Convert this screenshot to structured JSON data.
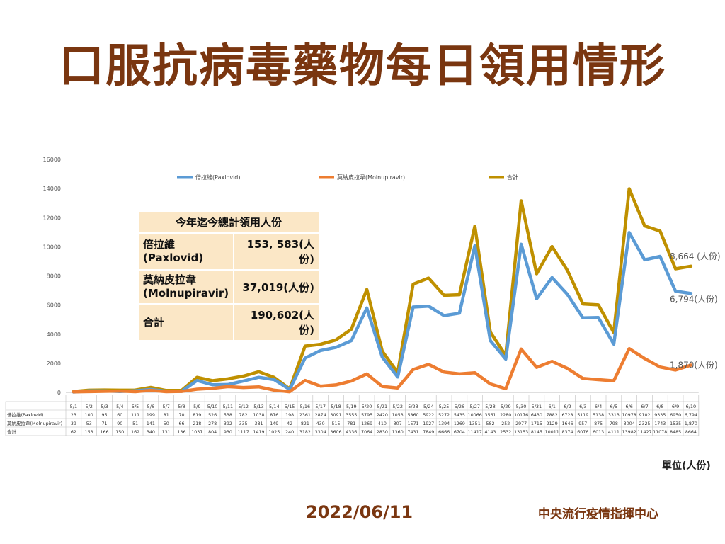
{
  "title": "口服抗病毒藥物每日領用情形",
  "summary": {
    "header": "今年迄今總計領用人份",
    "rows": [
      {
        "label": "倍拉維\n(Paxlovid)",
        "value": "153, 583(人份)"
      },
      {
        "label": "莫納皮拉韋\n(Molnupiravir)",
        "value": "37,019(人份)"
      },
      {
        "label": "合計",
        "value": "190,602(人份)"
      }
    ]
  },
  "unit_label": "單位(人份)",
  "date": "2022/06/11",
  "org": "中央流行疫情指揮中心",
  "chart_data": {
    "type": "line",
    "categories": [
      "5/1",
      "5/2",
      "5/3",
      "5/4",
      "5/5",
      "5/6",
      "5/7",
      "5/8",
      "5/9",
      "5/10",
      "5/11",
      "5/12",
      "5/13",
      "5/14",
      "5/15",
      "5/16",
      "5/17",
      "5/18",
      "5/19",
      "5/20",
      "5/21",
      "5/22",
      "5/23",
      "5/24",
      "5/25",
      "5/26",
      "5/27",
      "5/28",
      "5/29",
      "5/30",
      "5/31",
      "6/1",
      "6/2",
      "6/3",
      "6/4",
      "6/5",
      "6/6",
      "6/7",
      "6/8",
      "6/9",
      "6/10"
    ],
    "ylim": [
      0,
      16000
    ],
    "yticks": [
      0,
      2000,
      4000,
      6000,
      8000,
      10000,
      12000,
      14000,
      16000
    ],
    "legend_position": "top",
    "grid": false,
    "series": [
      {
        "name": "倍拉維(Paxlovid)",
        "table_label": "倍拉維(Paxlovid)",
        "color": "#5b9bd5",
        "values": [
          23,
          100,
          95,
          60,
          111,
          199,
          81,
          70,
          819,
          526,
          538,
          782,
          1038,
          876,
          198,
          2361,
          2874,
          3091,
          3555,
          5795,
          2420,
          1053,
          5860,
          5922,
          5272,
          5435,
          10066,
          3561,
          2280,
          10176,
          6430,
          7882,
          6728,
          5119,
          5138,
          3313,
          10978,
          9102,
          9335,
          6950,
          6794
        ],
        "table_values": [
          "23",
          "100",
          "95",
          "60",
          "111",
          "199",
          "81",
          "70",
          "819",
          "526",
          "538",
          "782",
          "1038",
          "876",
          "198",
          "2361",
          "2874",
          "3091",
          "3555",
          "5795",
          "2420",
          "1053",
          "5860",
          "5922",
          "5272",
          "5435",
          "10066",
          "3561",
          "2280",
          "10176",
          "6430",
          "7882",
          "6728",
          "5119",
          "5138",
          "3313",
          "10978",
          "9102",
          "9335",
          "6950",
          "6,794"
        ],
        "end_label": "6,794(人份)"
      },
      {
        "name": "莫納皮拉韋(Molnupiravir)",
        "table_label": "莫納皮拉韋(Molnupiravir)",
        "color": "#ed7d31",
        "values": [
          39,
          53,
          71,
          90,
          51,
          141,
          50,
          66,
          218,
          278,
          392,
          335,
          381,
          149,
          42,
          821,
          430,
          515,
          781,
          1269,
          410,
          307,
          1571,
          1927,
          1394,
          1269,
          1351,
          582,
          252,
          2977,
          1715,
          2129,
          1646,
          957,
          875,
          798,
          3004,
          2325,
          1743,
          1535,
          1870
        ],
        "table_values": [
          "39",
          "53",
          "71",
          "90",
          "51",
          "141",
          "50",
          "66",
          "218",
          "278",
          "392",
          "335",
          "381",
          "149",
          "42",
          "821",
          "430",
          "515",
          "781",
          "1269",
          "410",
          "307",
          "1571",
          "1927",
          "1394",
          "1269",
          "1351",
          "582",
          "252",
          "2977",
          "1715",
          "2129",
          "1646",
          "957",
          "875",
          "798",
          "3004",
          "2325",
          "1743",
          "1535",
          "1,870"
        ],
        "end_label": "1,870(人份)"
      },
      {
        "name": "合計",
        "table_label": "合計",
        "color": "#bf9000",
        "values": [
          62,
          153,
          166,
          150,
          162,
          340,
          131,
          136,
          1037,
          804,
          930,
          1117,
          1419,
          1025,
          240,
          3182,
          3304,
          3606,
          4336,
          7064,
          2830,
          1360,
          7431,
          7849,
          6666,
          6704,
          11417,
          4143,
          2532,
          13153,
          8145,
          10011,
          8374,
          6076,
          6013,
          4111,
          13982,
          11427,
          11078,
          8485,
          8664
        ],
        "table_values": [
          "62",
          "153",
          "166",
          "150",
          "162",
          "340",
          "131",
          "136",
          "1037",
          "804",
          "930",
          "1117",
          "1419",
          "1025",
          "240",
          "3182",
          "3304",
          "3606",
          "4336",
          "7064",
          "2830",
          "1360",
          "7431",
          "7849",
          "6666",
          "6704",
          "11417",
          "4143",
          "2532",
          "13153",
          "8145",
          "10011",
          "8374",
          "6076",
          "6013",
          "4111",
          "13982",
          "11427",
          "11078",
          "8485",
          "8664"
        ],
        "end_label": "8,664 (人份)"
      }
    ]
  }
}
